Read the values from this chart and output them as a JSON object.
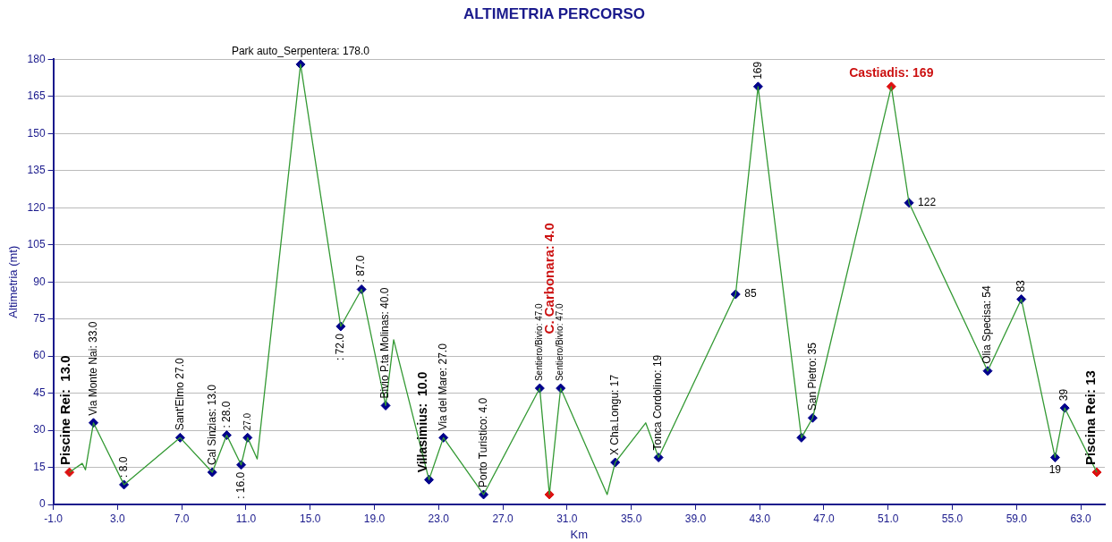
{
  "chart_data": {
    "type": "line",
    "title": "ALTIMETRIA PERCORSO",
    "xlabel": "Km",
    "ylabel": "Altimetria (mt)",
    "xlim": [
      -1,
      64.5
    ],
    "ylim": [
      0,
      180
    ],
    "xticks": [
      {
        "value": -1,
        "label": "-1.0"
      },
      {
        "value": 3,
        "label": "3.0"
      },
      {
        "value": 7,
        "label": "7.0"
      },
      {
        "value": 11,
        "label": "11.0"
      },
      {
        "value": 15,
        "label": "15.0"
      },
      {
        "value": 19,
        "label": "19.0"
      },
      {
        "value": 23,
        "label": "23.0"
      },
      {
        "value": 27,
        "label": "27.0"
      },
      {
        "value": 31,
        "label": "31.0"
      },
      {
        "value": 35,
        "label": "35.0"
      },
      {
        "value": 39,
        "label": "39.0"
      },
      {
        "value": 43,
        "label": "43.0"
      },
      {
        "value": 47,
        "label": "47.0"
      },
      {
        "value": 51,
        "label": "51.0"
      },
      {
        "value": 55,
        "label": "55.0"
      },
      {
        "value": 59,
        "label": "59.0"
      },
      {
        "value": 63,
        "label": "63.0"
      }
    ],
    "yticks": [
      0,
      15,
      30,
      45,
      60,
      75,
      90,
      105,
      120,
      135,
      150,
      165,
      180
    ],
    "grid": "y",
    "legend": false,
    "marker": "diamond",
    "line_style": "solid",
    "series": [
      {
        "color": "#339933",
        "marker": "none",
        "x": [
          0,
          0.8,
          1.0,
          1.5,
          3.4,
          6.9,
          8.9,
          9.8,
          10.7,
          11.1,
          11.7,
          14.4,
          16.9,
          18.2,
          19.7,
          20.2,
          22.4,
          23.3,
          25.8,
          29.3,
          29.9,
          30.6,
          33.5,
          34.0,
          35.9,
          36.7,
          41.5,
          42.9,
          45.6,
          46.3,
          51.2,
          52.3,
          57.2,
          59.3,
          61.4,
          62.0,
          64.0
        ],
        "values": [
          13,
          16.6,
          14,
          33,
          8,
          27,
          13,
          28,
          16,
          27,
          18.4,
          178,
          72,
          87,
          40,
          66.6,
          10,
          27,
          4,
          47,
          4,
          47,
          4,
          17,
          33,
          19,
          85,
          169,
          27,
          35,
          169,
          122,
          54,
          83,
          19,
          39,
          13
        ]
      },
      {
        "type": "scatter",
        "color": "#00008b",
        "x": [
          1.5,
          3.4,
          6.9,
          8.9,
          9.8,
          10.7,
          11.1,
          14.4,
          16.9,
          18.2,
          19.7,
          22.4,
          23.3,
          25.8,
          29.3,
          30.6,
          34.0,
          36.7,
          41.5,
          42.9,
          45.6,
          46.3,
          52.3,
          57.2,
          59.3,
          61.4,
          62.0
        ],
        "values": [
          33,
          8,
          27,
          13,
          28,
          16,
          27,
          178,
          72,
          87,
          40,
          10,
          27,
          4,
          47,
          47,
          17,
          19,
          85,
          169,
          27,
          35,
          122,
          54,
          83,
          19,
          39
        ]
      },
      {
        "type": "scatter",
        "color": "#dd1111",
        "x": [
          0,
          29.9,
          51.2,
          64.0
        ],
        "values": [
          13,
          4,
          169,
          13
        ]
      }
    ],
    "annotations": [
      {
        "text": "Piscine Rei:  13.0",
        "x": 0,
        "y": 13
      },
      {
        "text": "Via Monte Nai: 33.0",
        "x": 1.5,
        "y": 33
      },
      {
        "text": ": 8.0",
        "x": 3.4,
        "y": 8
      },
      {
        "text": "Sant'Elmo 27.0",
        "x": 6.9,
        "y": 27
      },
      {
        "text": "Cal Sinzias: 13.0",
        "x": 8.9,
        "y": 13
      },
      {
        "text": ": 28.0",
        "x": 9.8,
        "y": 28
      },
      {
        "text": ": 16.0",
        "x": 10.7,
        "y": 16
      },
      {
        "text": "27.0",
        "x": 11.1,
        "y": 27
      },
      {
        "text": "Park auto_Serpentera: 178.0",
        "x": 14.4,
        "y": 178
      },
      {
        "text": ": 72.0",
        "x": 16.9,
        "y": 72
      },
      {
        "text": ": 87.0",
        "x": 18.2,
        "y": 87
      },
      {
        "text": "Bivio P.ta Molinas: 40.0",
        "x": 19.7,
        "y": 40
      },
      {
        "text": "Villasimius:  10.0",
        "x": 22.4,
        "y": 10
      },
      {
        "text": "Via del Mare: 27.0",
        "x": 23.3,
        "y": 27
      },
      {
        "text": "Porto Turistico: 4.0",
        "x": 25.8,
        "y": 4
      },
      {
        "text": "Sentiero/Bivio: 47.0",
        "x": 29.3,
        "y": 47
      },
      "C. Carbonara: 4.0",
      {
        "text": "Sentiero/Bivio: 47.0",
        "x": 30.6,
        "y": 47
      },
      {
        "text": "X Cha.Longu: 17",
        "x": 34.0,
        "y": 17
      },
      {
        "text": "Tonca Cordolino: 19",
        "x": 36.7,
        "y": 19
      },
      {
        "text": "85",
        "x": 41.5,
        "y": 85
      },
      {
        "text": "169",
        "x": 42.9,
        "y": 169
      },
      {
        "text": "San Pietro: 35",
        "x": 46.3,
        "y": 35
      },
      {
        "text": "Castiadis: 169",
        "x": 51.2,
        "y": 169
      },
      {
        "text": "122",
        "x": 52.3,
        "y": 122
      },
      {
        "text": "Olia Specisa: 54",
        "x": 57.2,
        "y": 54
      },
      {
        "text": "83",
        "x": 59.3,
        "y": 83
      },
      {
        "text": "19",
        "x": 61.4,
        "y": 19
      },
      {
        "text": "39",
        "x": 62.0,
        "y": 39
      },
      {
        "text": "Piscina Rei: 13",
        "x": 64.0,
        "y": 13
      }
    ]
  }
}
